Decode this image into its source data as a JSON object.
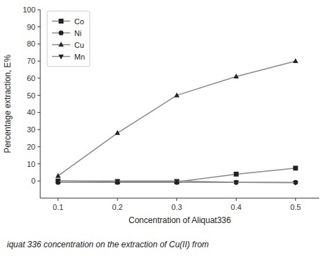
{
  "chart_data": {
    "type": "line",
    "xlabel": "Concentration of Aliquat336",
    "ylabel": "Percentage extraction, E%",
    "caption": "iquat 336 concentration on the extraction of Cu(II) from",
    "x": [
      0.1,
      0.2,
      0.3,
      0.4,
      0.5
    ],
    "series": [
      {
        "name": "Co",
        "color": "#888888",
        "marker": "square",
        "values": [
          0.0,
          -0.5,
          -0.5,
          4.0,
          7.5
        ]
      },
      {
        "name": "Ni",
        "color": "#888888",
        "marker": "circle",
        "values": [
          -0.8,
          -0.8,
          -0.8,
          -0.8,
          -0.8
        ]
      },
      {
        "name": "Cu",
        "color": "#888888",
        "marker": "triangle-up",
        "values": [
          3.0,
          28.0,
          50.0,
          61.0,
          70.0
        ]
      },
      {
        "name": "Mn",
        "color": "#888888",
        "marker": "triangle-down",
        "values": [
          0.0,
          0.0,
          0.0,
          -0.8,
          -1.0
        ]
      }
    ],
    "xlim": [
      0.07,
      0.54
    ],
    "ylim": [
      -10,
      100
    ],
    "xticks": [
      0.1,
      0.2,
      0.3,
      0.4,
      0.5
    ],
    "yticks": [
      0,
      10,
      20,
      30,
      40,
      50,
      60,
      70,
      80,
      90,
      100
    ],
    "grid": false,
    "legend": "upper left"
  }
}
